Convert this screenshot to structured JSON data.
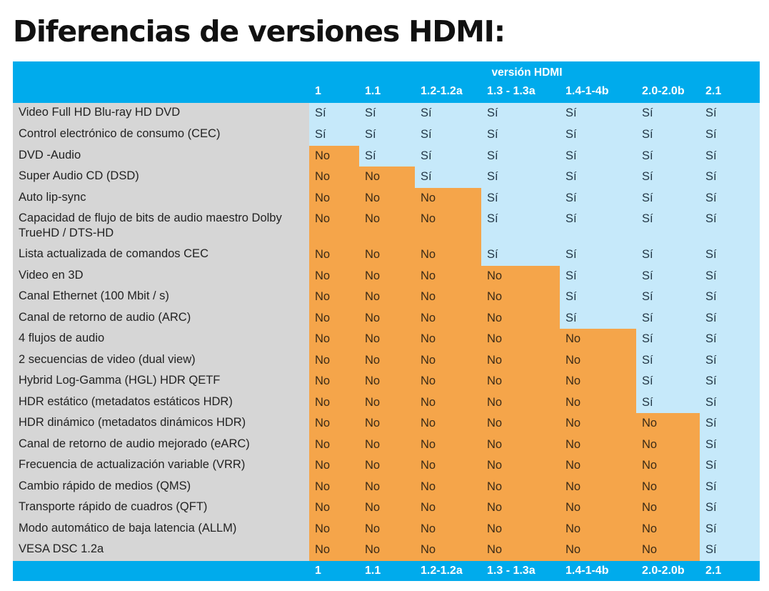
{
  "title": "Diferencias de versiones HDMI:",
  "header_label": "versión HDMI",
  "columns": [
    "1",
    "1.1",
    "1.2-1.2a",
    "1.3 - 1.3a",
    "1.4-1-4b",
    "2.0-2.0b",
    "2.1"
  ],
  "yes_text": "Sí",
  "no_text": "No",
  "colors": {
    "header_blue": "#00abec",
    "yes_bg": "#c6e9fa",
    "no_bg": "#f5a54a",
    "label_bg": "#d6d6d6"
  },
  "rows": [
    {
      "label": "Video Full HD Blu-ray HD DVD",
      "first_version_index": 0
    },
    {
      "label": "Control electrónico de consumo (CEC)",
      "first_version_index": 0
    },
    {
      "label": "DVD -Audio",
      "first_version_index": 1
    },
    {
      "label": "Super Audio CD (DSD)",
      "first_version_index": 2
    },
    {
      "label": "Auto lip-sync",
      "first_version_index": 3
    },
    {
      "label": "Capacidad de flujo de bits de audio maestro Dolby TrueHD / DTS-HD",
      "first_version_index": 3
    },
    {
      "label": "Lista actualizada de comandos CEC",
      "first_version_index": 3
    },
    {
      "label": "Video en 3D",
      "first_version_index": 4
    },
    {
      "label": "Canal Ethernet (100 Mbit / s)",
      "first_version_index": 4
    },
    {
      "label": "Canal de retorno de audio (ARC)",
      "first_version_index": 4
    },
    {
      "label": "4 flujos de audio",
      "first_version_index": 5
    },
    {
      "label": "2 secuencias de video (dual view)",
      "first_version_index": 5
    },
    {
      "label": "Hybrid Log-Gamma (HGL) HDR QETF",
      "first_version_index": 5
    },
    {
      "label": "HDR estático (metadatos estáticos HDR)",
      "first_version_index": 5
    },
    {
      "label": "HDR dinámico (metadatos dinámicos HDR)",
      "first_version_index": 6
    },
    {
      "label": "Canal de retorno de audio mejorado (eARC)",
      "first_version_index": 6
    },
    {
      "label": "Frecuencia de actualización variable (VRR)",
      "first_version_index": 6
    },
    {
      "label": "Cambio rápido de medios (QMS)",
      "first_version_index": 6
    },
    {
      "label": "Transporte rápido de cuadros (QFT)",
      "first_version_index": 6
    },
    {
      "label": "Modo automático de baja latencia (ALLM)",
      "first_version_index": 6
    },
    {
      "label": "VESA DSC 1.2a",
      "first_version_index": 6
    }
  ]
}
